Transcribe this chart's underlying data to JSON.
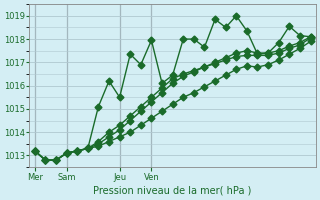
{
  "background_color": "#d4eef4",
  "grid_color": "#b0c8d0",
  "line_color": "#1a6b2a",
  "title": "Pression niveau de la mer( hPa )",
  "xlabel": "Pression niveau de la mer( hPa )",
  "ylabel": "",
  "ylim": [
    1012.5,
    1019.5
  ],
  "yticks": [
    1013,
    1014,
    1015,
    1016,
    1017,
    1018,
    1019
  ],
  "day_labels": [
    "Mer",
    "Sam",
    "Jeu",
    "Ven"
  ],
  "day_positions": [
    0,
    3,
    8,
    11
  ],
  "series1": [
    1013.2,
    1012.8,
    1012.8,
    1013.1,
    1013.2,
    1013.3,
    1015.1,
    1016.2,
    1015.5,
    1017.35,
    1016.9,
    1017.95,
    1016.1,
    1016.45,
    1018.0,
    1018.0,
    1017.65,
    1018.85,
    1018.5,
    1019.0,
    1018.35,
    1017.35,
    1017.4,
    1017.85,
    1018.55,
    1018.15,
    1018.1
  ],
  "series2": [
    1013.2,
    1012.8,
    1012.8,
    1013.1,
    1013.2,
    1013.3,
    1013.5,
    1013.8,
    1014.1,
    1014.5,
    1014.9,
    1015.3,
    1015.7,
    1016.1,
    1016.4,
    1016.6,
    1016.8,
    1017.0,
    1017.2,
    1017.4,
    1017.5,
    1017.4,
    1017.4,
    1017.5,
    1017.7,
    1017.85,
    1018.1
  ],
  "series3": [
    1013.2,
    1012.8,
    1012.8,
    1013.1,
    1013.2,
    1013.3,
    1013.6,
    1014.0,
    1014.3,
    1014.7,
    1015.1,
    1015.5,
    1015.9,
    1016.3,
    1016.5,
    1016.65,
    1016.8,
    1016.95,
    1017.1,
    1017.25,
    1017.3,
    1017.3,
    1017.3,
    1017.4,
    1017.6,
    1017.75,
    1018.05
  ],
  "series4": [
    1013.2,
    1012.8,
    1012.8,
    1013.1,
    1013.2,
    1013.3,
    1013.4,
    1013.6,
    1013.8,
    1014.0,
    1014.3,
    1014.6,
    1014.9,
    1015.2,
    1015.5,
    1015.7,
    1015.95,
    1016.2,
    1016.45,
    1016.7,
    1016.85,
    1016.8,
    1016.9,
    1017.1,
    1017.35,
    1017.6,
    1017.9
  ],
  "n_points": 27
}
